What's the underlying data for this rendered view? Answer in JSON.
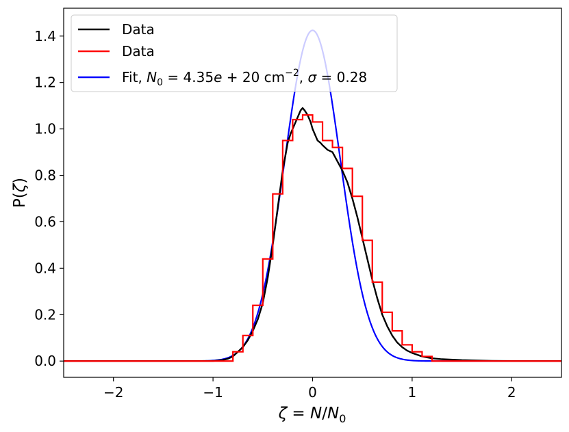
{
  "chart_data": {
    "type": "line",
    "title": "",
    "xlabel_parts": {
      "zeta": "ζ",
      "eq": " = ",
      "n": "N",
      "slash": "/",
      "n0": "N",
      "n0_sub": "0"
    },
    "ylabel_parts": {
      "p": "P(",
      "zeta": "ζ",
      "close": ")"
    },
    "xlim": [
      -2.5,
      2.5
    ],
    "ylim": [
      -0.07,
      1.52
    ],
    "xticks": [
      -2,
      -1,
      0,
      1,
      2
    ],
    "xtick_labels": [
      "−2",
      "−1",
      "0",
      "1",
      "2"
    ],
    "yticks": [
      0.0,
      0.2,
      0.4,
      0.6,
      0.8,
      1.0,
      1.2,
      1.4
    ],
    "ytick_labels": [
      "0.0",
      "0.2",
      "0.4",
      "0.6",
      "0.8",
      "1.0",
      "1.2",
      "1.4"
    ],
    "grid": false,
    "legend_position": "top-left",
    "legend": {
      "entry1": "Data",
      "entry2": "Data",
      "fit_prefix": "Fit, ",
      "fit_n": "N",
      "fit_n_sub": "0",
      "fit_eq1": " = 4.35",
      "fit_e": "e",
      "fit_plus": " + 20 cm",
      "fit_exp": "−2",
      "fit_comma": ", ",
      "fit_sigma": "σ",
      "fit_eq2": " = 0.28"
    },
    "series": [
      {
        "name": "Data",
        "color": "#000000",
        "style": "line",
        "x": [
          -2.5,
          -1.0,
          -0.9,
          -0.85,
          -0.8,
          -0.75,
          -0.7,
          -0.65,
          -0.6,
          -0.55,
          -0.5,
          -0.45,
          -0.4,
          -0.35,
          -0.3,
          -0.25,
          -0.22,
          -0.2,
          -0.18,
          -0.15,
          -0.12,
          -0.1,
          -0.08,
          -0.05,
          -0.02,
          0.0,
          0.03,
          0.05,
          0.08,
          0.1,
          0.15,
          0.2,
          0.25,
          0.3,
          0.35,
          0.4,
          0.45,
          0.5,
          0.55,
          0.6,
          0.65,
          0.7,
          0.75,
          0.8,
          0.85,
          0.9,
          0.95,
          1.0,
          1.1,
          1.2,
          1.3,
          1.5,
          1.8,
          2.0,
          2.5
        ],
        "y": [
          0.0,
          0.0,
          0.005,
          0.01,
          0.02,
          0.04,
          0.06,
          0.09,
          0.13,
          0.18,
          0.25,
          0.36,
          0.5,
          0.66,
          0.82,
          0.94,
          0.98,
          1.0,
          1.02,
          1.05,
          1.08,
          1.09,
          1.08,
          1.06,
          1.03,
          1.0,
          0.97,
          0.95,
          0.94,
          0.93,
          0.91,
          0.9,
          0.86,
          0.82,
          0.77,
          0.7,
          0.62,
          0.53,
          0.44,
          0.35,
          0.27,
          0.2,
          0.15,
          0.11,
          0.08,
          0.06,
          0.045,
          0.035,
          0.02,
          0.012,
          0.008,
          0.004,
          0.001,
          0.0,
          0.0
        ]
      },
      {
        "name": "Data",
        "color": "#ff0000",
        "style": "step",
        "edges": [
          -0.8,
          -0.7,
          -0.6,
          -0.5,
          -0.4,
          -0.3,
          -0.2,
          -0.1,
          0.0,
          0.1,
          0.2,
          0.3,
          0.4,
          0.5,
          0.6,
          0.7,
          0.8,
          0.9,
          1.0,
          1.1,
          1.2
        ],
        "values": [
          0.04,
          0.11,
          0.24,
          0.44,
          0.72,
          0.95,
          1.04,
          1.06,
          1.03,
          0.95,
          0.92,
          0.83,
          0.71,
          0.52,
          0.34,
          0.21,
          0.13,
          0.07,
          0.04,
          0.02
        ]
      },
      {
        "name": "Fit",
        "color": "#0000ff",
        "style": "lognormal",
        "n0_label": "4.35e+20 cm^-2",
        "sigma": 0.28
      }
    ]
  }
}
